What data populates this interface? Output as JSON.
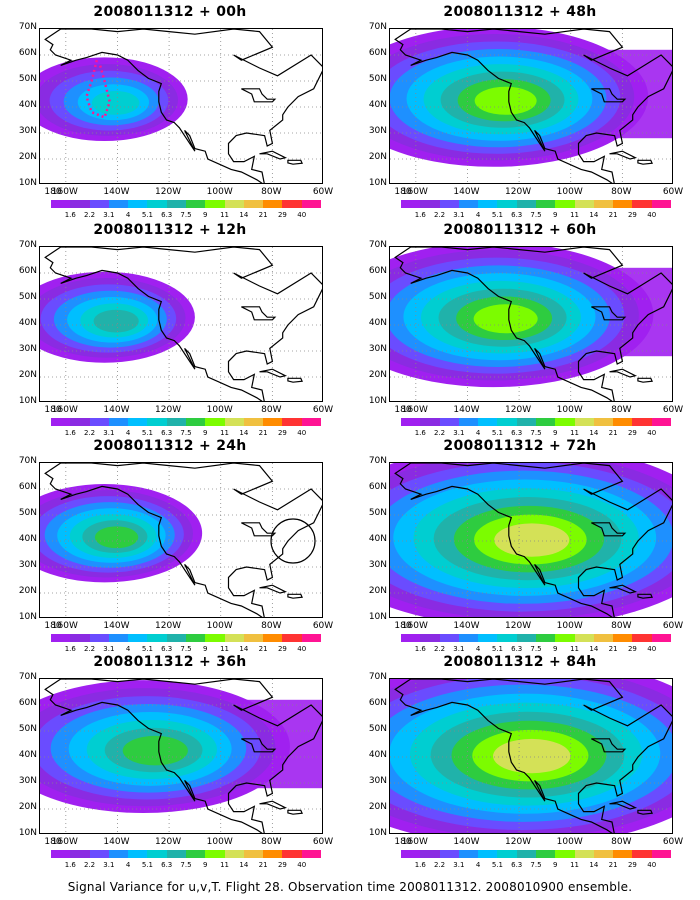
{
  "figure": {
    "caption": "Signal Variance for u,v,T. Flight 28. Observation time 2008011312. 2008010900 ensemble.",
    "latitude_labels": [
      "70N",
      "60N",
      "50N",
      "40N",
      "30N",
      "20N",
      "10N"
    ],
    "longitude_labels": [
      "180",
      "160W",
      "140W",
      "120W",
      "100W",
      "80W",
      "60W"
    ],
    "color_scale": {
      "tick_labels": [
        "1.6",
        "2.2",
        "3.1",
        "4",
        "5.1",
        "6.3",
        "7.5",
        "9",
        "11",
        "14",
        "21",
        "29",
        "40"
      ],
      "colors": [
        "#a020f0",
        "#8a2be2",
        "#6a4cff",
        "#1e90ff",
        "#00bfff",
        "#00ced1",
        "#20b2aa",
        "#2ecc40",
        "#7cfc00",
        "#d4e157",
        "#f0c040",
        "#ff8c00",
        "#ff3333",
        "#ff1493"
      ]
    },
    "panels": [
      {
        "title": "2008011312 + 00h",
        "intensity": 0.35,
        "focus": "pacific",
        "flight_track": true,
        "circle": false
      },
      {
        "title": "2008011312 + 48h",
        "intensity": 0.7,
        "focus": "west-coast",
        "flight_track": false,
        "circle": false
      },
      {
        "title": "2008011312 + 12h",
        "intensity": 0.45,
        "focus": "pacific",
        "flight_track": false,
        "circle": false
      },
      {
        "title": "2008011312 + 60h",
        "intensity": 0.75,
        "focus": "west-coast",
        "flight_track": false,
        "circle": false
      },
      {
        "title": "2008011312 + 24h",
        "intensity": 0.55,
        "focus": "pacific",
        "flight_track": false,
        "circle": true
      },
      {
        "title": "2008011312 + 72h",
        "intensity": 0.8,
        "focus": "continent",
        "flight_track": false,
        "circle": false
      },
      {
        "title": "2008011312 + 36h",
        "intensity": 0.62,
        "focus": "west-coast",
        "flight_track": false,
        "circle": false
      },
      {
        "title": "2008011312 + 84h",
        "intensity": 0.85,
        "focus": "continent",
        "flight_track": false,
        "circle": false
      }
    ]
  }
}
